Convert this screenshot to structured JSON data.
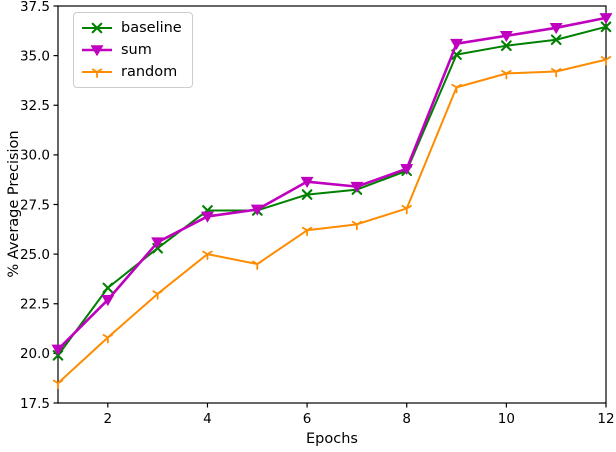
{
  "chart_data": {
    "type": "line",
    "title": "",
    "xlabel": "Epochs",
    "ylabel": "% Average Precision",
    "xlim": [
      1,
      12
    ],
    "ylim": [
      17.5,
      37.5
    ],
    "xticks": [
      2,
      4,
      6,
      8,
      10,
      12
    ],
    "yticks": [
      17.5,
      20.0,
      22.5,
      25.0,
      27.5,
      30.0,
      32.5,
      35.0,
      37.5
    ],
    "grid": false,
    "legend_position": "upper-left",
    "x": [
      1,
      2,
      3,
      4,
      5,
      6,
      7,
      8,
      9,
      10,
      11,
      12
    ],
    "series": [
      {
        "name": "baseline",
        "color": "#008000",
        "marker": "x",
        "line_width": 2,
        "values": [
          19.9,
          23.3,
          25.3,
          27.2,
          27.2,
          28.0,
          28.25,
          29.2,
          35.05,
          35.5,
          35.8,
          36.45
        ]
      },
      {
        "name": "sum",
        "color": "#bf00bf",
        "marker": "triangle-down",
        "line_width": 2.6,
        "values": [
          20.2,
          22.7,
          25.6,
          26.9,
          27.25,
          28.65,
          28.4,
          29.3,
          35.6,
          36.0,
          36.4,
          36.9
        ]
      },
      {
        "name": "random",
        "color": "#ff8c00",
        "marker": "tri-down",
        "line_width": 2,
        "values": [
          18.5,
          20.8,
          23.0,
          25.0,
          24.5,
          26.2,
          26.5,
          27.3,
          33.4,
          34.1,
          34.2,
          34.8
        ]
      }
    ]
  }
}
